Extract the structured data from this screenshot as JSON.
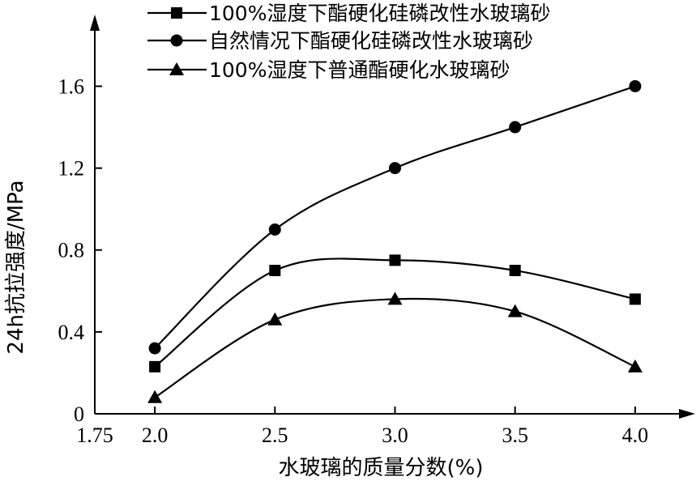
{
  "chart_data": {
    "type": "line",
    "xlabel": "水玻璃的质量分数(%)",
    "ylabel": "24h抗拉强度/MPa",
    "x": [
      2.0,
      2.5,
      3.0,
      3.5,
      4.0
    ],
    "x_ticks": [
      "1.75",
      "2.0",
      "2.5",
      "3.0",
      "3.5",
      "4.0"
    ],
    "y_ticks": [
      "0",
      "0.4",
      "0.8",
      "1.2",
      "1.6"
    ],
    "xlim": [
      1.75,
      4.25
    ],
    "ylim": [
      0,
      1.95
    ],
    "grid": false,
    "legend_position": "top",
    "series": [
      {
        "name": "100%湿度下酯硬化硅磷改性水玻璃砂",
        "marker": "square",
        "values": [
          0.23,
          0.7,
          0.75,
          0.7,
          0.56
        ]
      },
      {
        "name": "自然情况下酯硬化硅磷改性水玻璃砂",
        "marker": "circle",
        "values": [
          0.32,
          0.9,
          1.2,
          1.4,
          1.6
        ]
      },
      {
        "name": "100%湿度下普通酯硬化水玻璃砂",
        "marker": "triangle",
        "values": [
          0.08,
          0.46,
          0.56,
          0.5,
          0.23
        ]
      }
    ]
  }
}
